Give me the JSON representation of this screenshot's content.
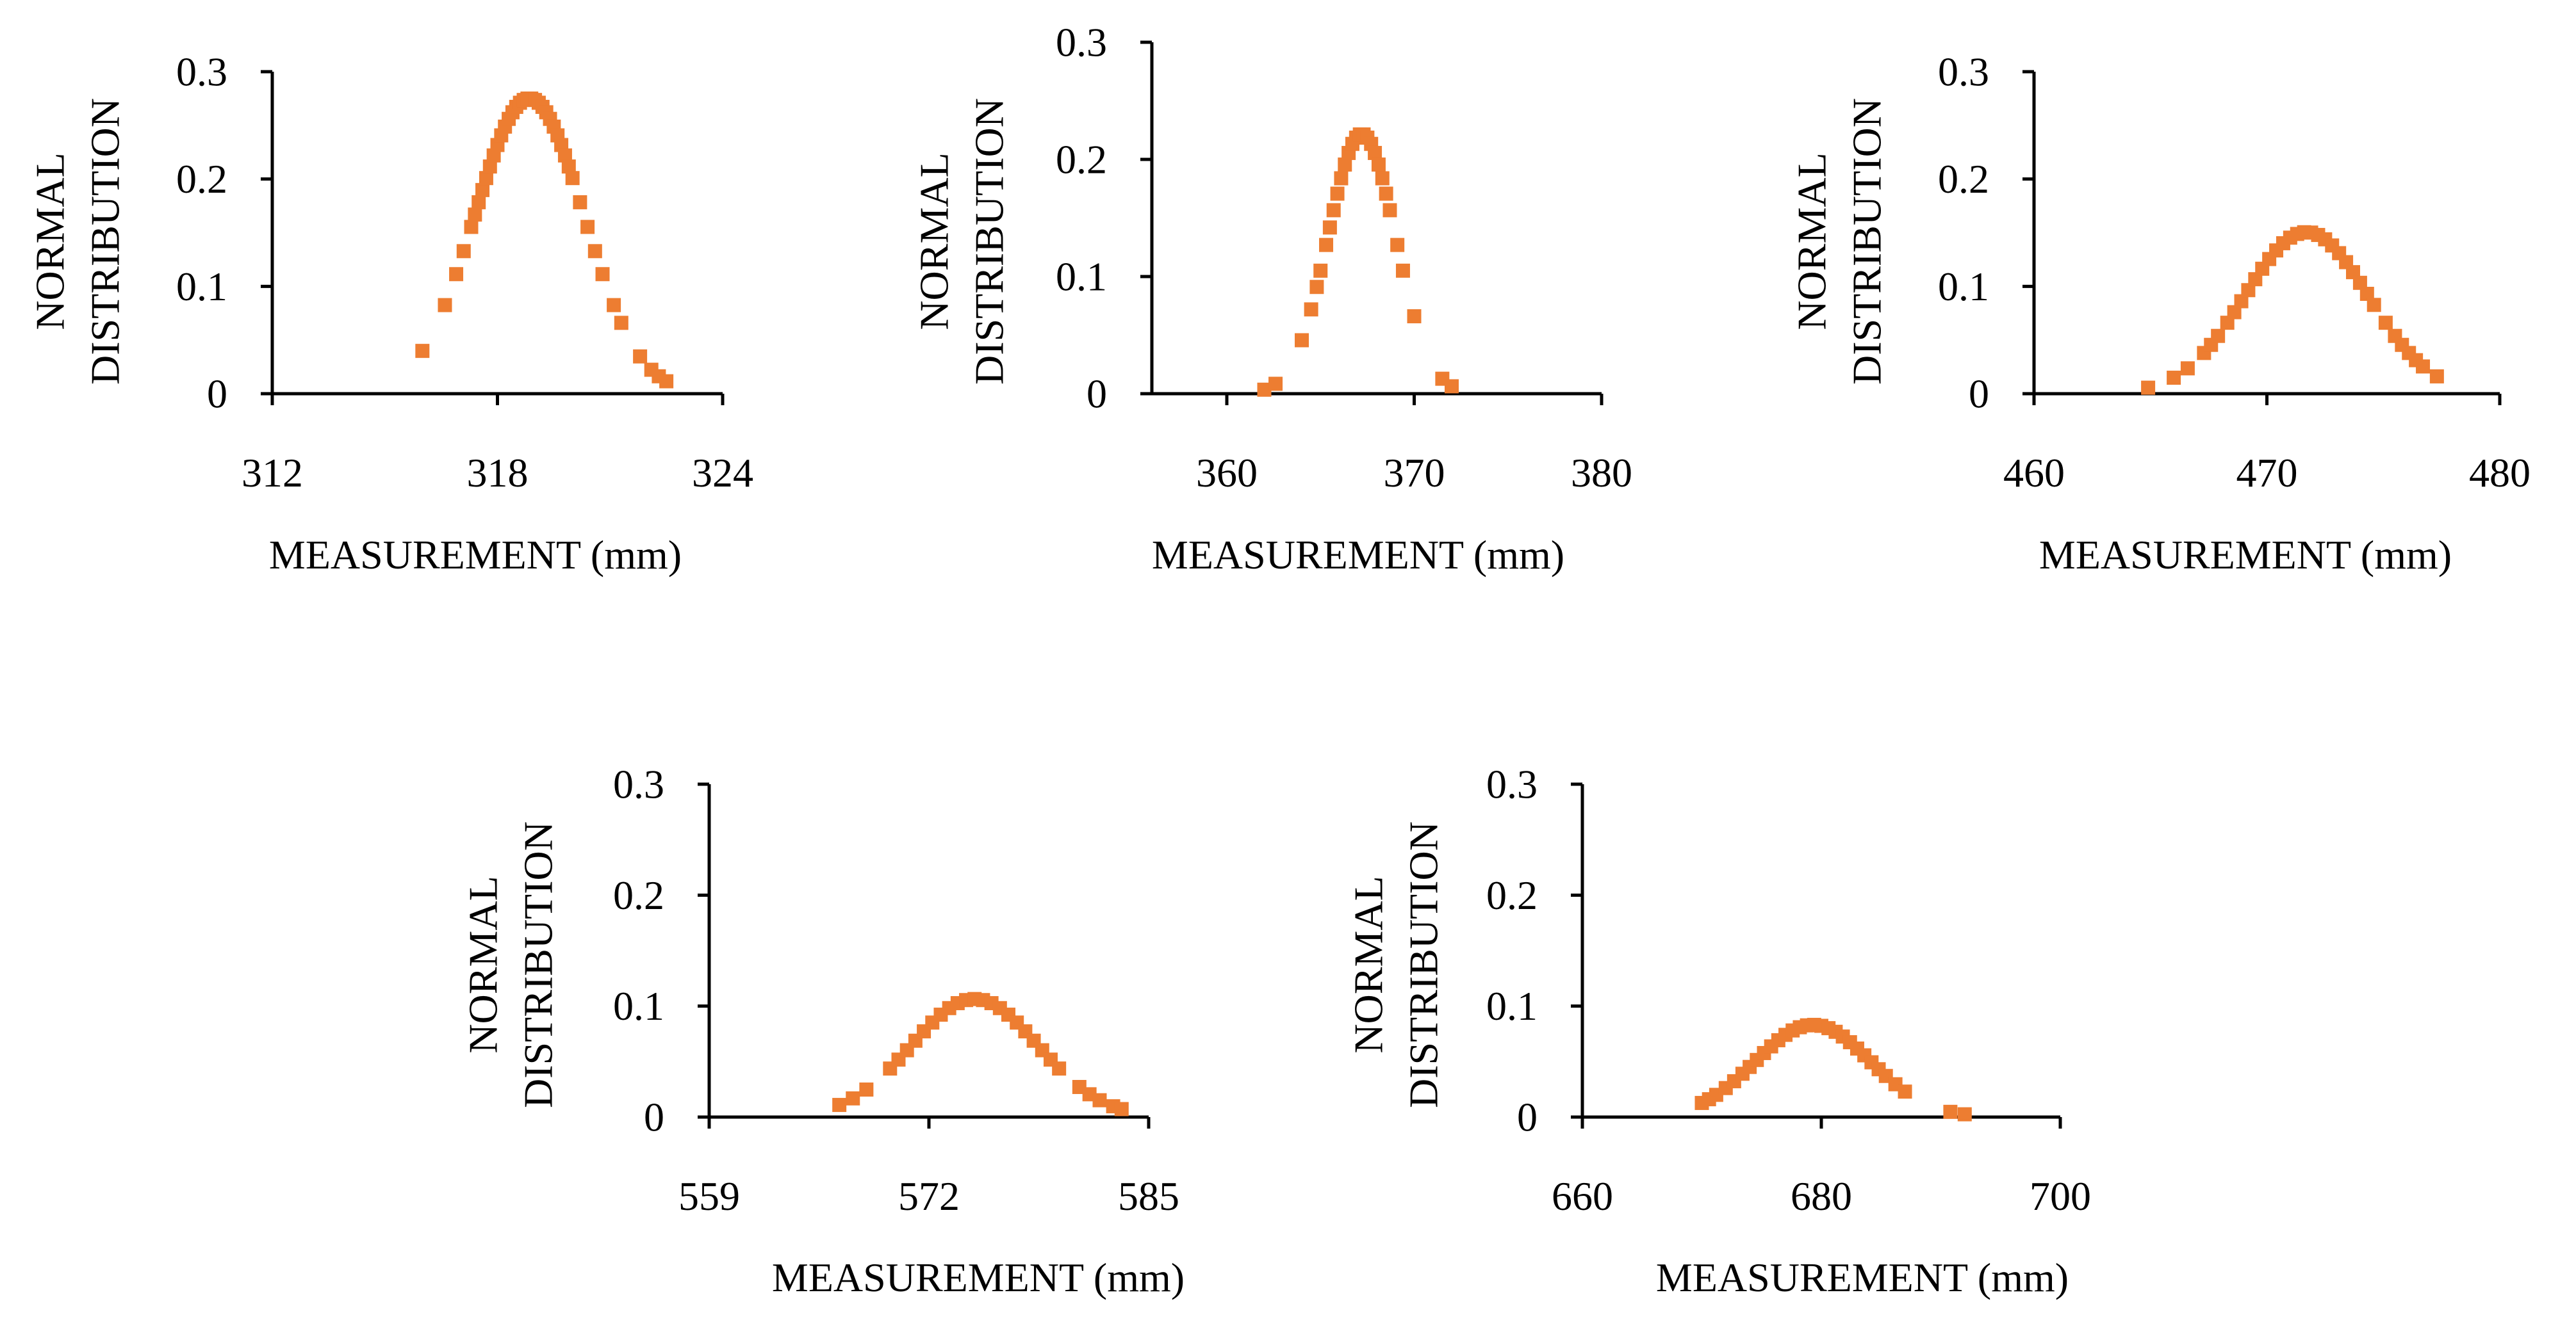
{
  "chart_data": [
    {
      "type": "scatter",
      "xlabel": "MEASUREMENT (mm)",
      "ylabel": [
        "NORMAL",
        "DISTRIBUTION"
      ],
      "xlim": [
        312,
        324
      ],
      "ylim": [
        0,
        0.3
      ],
      "xticks": [
        "312",
        "318",
        "324"
      ],
      "yticks": [
        "0",
        "0.1",
        "0.2",
        "0.3"
      ],
      "series": [
        {
          "name": "normal distribution",
          "mean": 318.85,
          "sd": 1.45,
          "x": [
            316,
            316.6,
            316.9,
            317.1,
            317.3,
            317.4,
            317.5,
            317.6,
            317.7,
            317.8,
            317.9,
            318,
            318.1,
            318.2,
            318.3,
            318.4,
            318.5,
            318.6,
            318.7,
            318.8,
            318.9,
            319,
            319.1,
            319.2,
            319.3,
            319.4,
            319.5,
            319.6,
            319.7,
            319.8,
            319.9,
            320,
            320.2,
            320.4,
            320.6,
            320.8,
            321.1,
            321.3,
            321.8,
            322.1,
            322.3,
            322.5
          ]
        }
      ]
    },
    {
      "type": "scatter",
      "xlabel": "MEASUREMENT (mm)",
      "ylabel": [
        "NORMAL",
        "DISTRIBUTION"
      ],
      "xlim": [
        356,
        380
      ],
      "ylim": [
        0,
        0.3
      ],
      "xticks": [
        "360",
        "370",
        "380"
      ],
      "yticks": [
        "0",
        "0.1",
        "0.2",
        "0.3"
      ],
      "series": [
        {
          "name": "normal distribution",
          "mean": 367.2,
          "sd": 1.8,
          "x": [
            362,
            362.6,
            364,
            364.5,
            364.8,
            365,
            365.3,
            365.5,
            365.7,
            365.9,
            366.1,
            366.3,
            366.5,
            366.7,
            366.9,
            367.1,
            367.3,
            367.5,
            367.7,
            367.9,
            368.1,
            368.3,
            368.5,
            368.7,
            369.1,
            369.4,
            370,
            371.5,
            372
          ]
        }
      ]
    },
    {
      "type": "scatter",
      "xlabel": "MEASUREMENT (mm)",
      "ylabel": [
        "NORMAL",
        "DISTRIBUTION"
      ],
      "xlim": [
        460,
        480
      ],
      "ylim": [
        0,
        0.3
      ],
      "xticks": [
        "460",
        "470",
        "480"
      ],
      "yticks": [
        "0",
        "0.1",
        "0.2",
        "0.3"
      ],
      "series": [
        {
          "name": "normal distribution",
          "mean": 471.7,
          "sd": 2.65,
          "x": [
            464.9,
            466,
            466.6,
            467.3,
            467.6,
            467.9,
            468.3,
            468.6,
            468.9,
            469.2,
            469.5,
            469.8,
            470.1,
            470.4,
            470.7,
            471,
            471.3,
            471.6,
            471.9,
            472.2,
            472.5,
            472.8,
            473.1,
            473.4,
            473.7,
            474,
            474.3,
            474.6,
            475.1,
            475.5,
            475.8,
            476.1,
            476.4,
            476.7,
            477.3
          ]
        }
      ]
    },
    {
      "type": "scatter",
      "xlabel": "MEASUREMENT (mm)",
      "ylabel": [
        "NORMAL",
        "DISTRIBUTION"
      ],
      "xlim": [
        559,
        585
      ],
      "ylim": [
        0,
        0.3
      ],
      "xticks": [
        "559",
        "572",
        "585"
      ],
      "yticks": [
        "0",
        "0.1",
        "0.2",
        "0.3"
      ],
      "series": [
        {
          "name": "normal distribution",
          "mean": 574.7,
          "sd": 3.75,
          "x": [
            566.7,
            567.5,
            568.3,
            569.7,
            570.2,
            570.7,
            571.2,
            571.7,
            572.2,
            572.7,
            573.2,
            573.7,
            574.2,
            574.7,
            575.2,
            575.7,
            576.2,
            576.7,
            577.2,
            577.7,
            578.2,
            578.7,
            579.2,
            579.7,
            580.9,
            581.5,
            582.1,
            582.9,
            583.4
          ]
        }
      ]
    },
    {
      "type": "scatter",
      "xlabel": "MEASUREMENT (mm)",
      "ylabel": [
        "NORMAL",
        "DISTRIBUTION"
      ],
      "xlim": [
        660,
        700
      ],
      "ylim": [
        0,
        0.3
      ],
      "xticks": [
        "660",
        "680",
        "700"
      ],
      "yticks": [
        "0",
        "0.1",
        "0.2",
        "0.3"
      ],
      "series": [
        {
          "name": "normal distribution",
          "mean": 679.3,
          "sd": 4.8,
          "x": [
            670,
            670.6,
            671.2,
            672,
            672.7,
            673.4,
            674,
            674.6,
            675.2,
            675.8,
            676.4,
            677,
            677.6,
            678.2,
            678.8,
            679.4,
            680,
            680.6,
            681.2,
            681.8,
            682.4,
            683,
            683.6,
            684.2,
            684.8,
            685.4,
            686.2,
            687,
            690.8,
            692
          ]
        }
      ]
    }
  ],
  "colors": {
    "marker": "#ED7D31",
    "axis": "#000000"
  }
}
